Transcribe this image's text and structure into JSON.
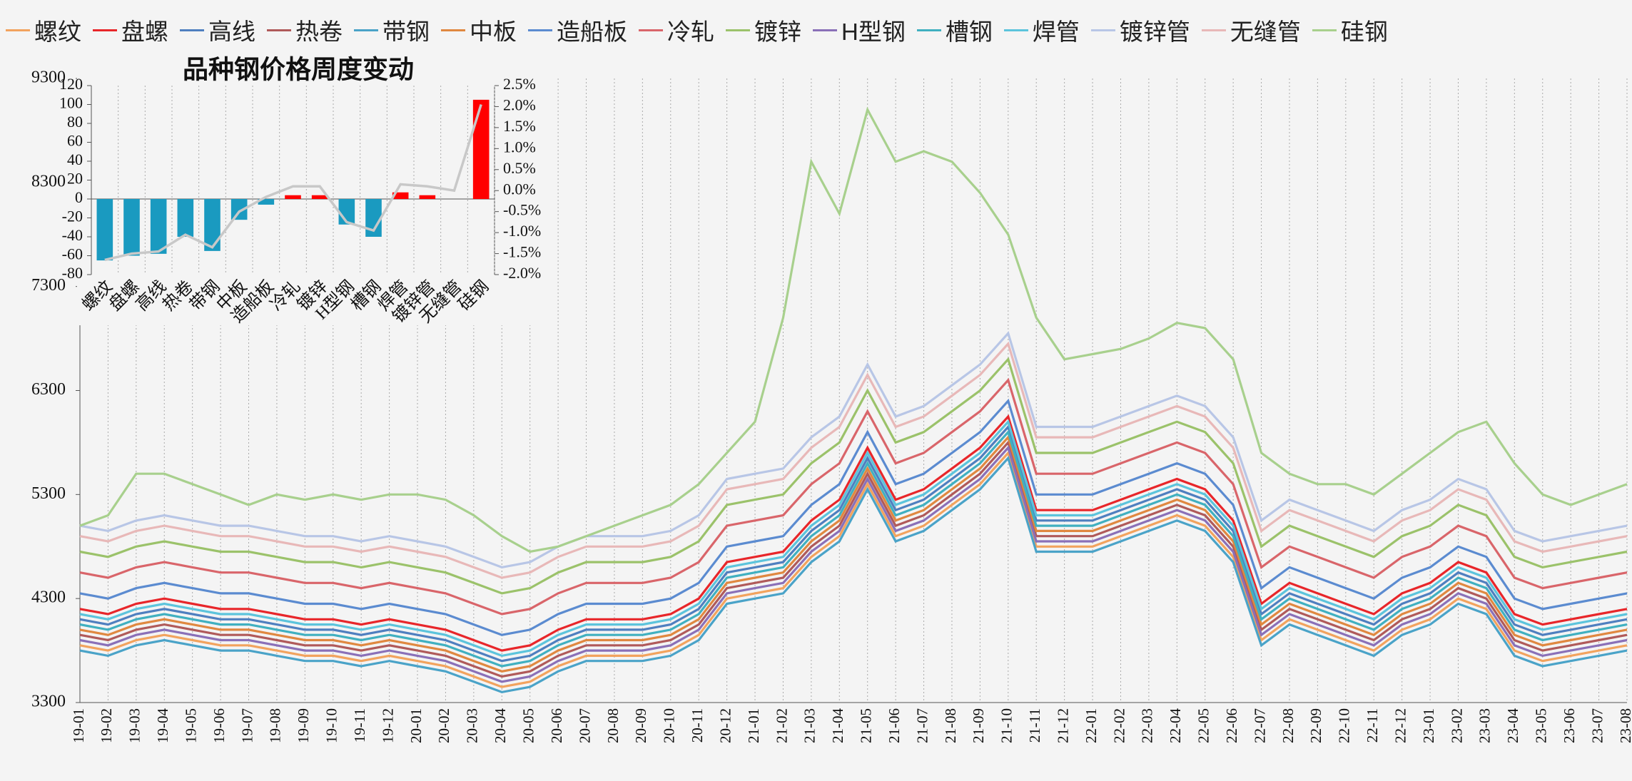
{
  "chart_data": [
    {
      "type": "line",
      "grid": true,
      "categories": [
        "19-01",
        "19-02",
        "19-03",
        "19-04",
        "19-05",
        "19-06",
        "19-07",
        "19-08",
        "19-09",
        "19-10",
        "19-11",
        "19-12",
        "20-01",
        "20-02",
        "20-03",
        "20-04",
        "20-05",
        "20-06",
        "20-07",
        "20-08",
        "20-09",
        "20-10",
        "20-11",
        "20-12",
        "21-01",
        "21-02",
        "21-03",
        "21-04",
        "21-05",
        "21-06",
        "21-07",
        "21-08",
        "21-09",
        "21-10",
        "21-11",
        "21-12",
        "22-01",
        "22-02",
        "22-03",
        "22-04",
        "22-05",
        "22-06",
        "22-07",
        "22-08",
        "22-09",
        "22-10",
        "22-11",
        "22-12",
        "23-01",
        "23-02",
        "23-03",
        "23-04",
        "23-05",
        "23-06",
        "23-07",
        "23-08"
      ],
      "ylim": [
        3300,
        9300
      ],
      "yticks": [
        3300,
        4300,
        5300,
        6300,
        7300,
        8300,
        9300
      ],
      "series": [
        {
          "name": "螺纹",
          "color": "#f2a35e",
          "values": [
            3850,
            3800,
            3900,
            3950,
            3900,
            3850,
            3850,
            3800,
            3750,
            3750,
            3700,
            3750,
            3700,
            3650,
            3550,
            3450,
            3500,
            3650,
            3750,
            3750,
            3750,
            3800,
            3950,
            4300,
            4350,
            4400,
            4700,
            4900,
            5400,
            4900,
            5000,
            5200,
            5400,
            5700,
            4800,
            4800,
            4800,
            4900,
            5000,
            5100,
            5000,
            4700,
            3900,
            4100,
            4000,
            3900,
            3800,
            4000,
            4100,
            4300,
            4200,
            3800,
            3700,
            3750,
            3800,
            3850
          ]
        },
        {
          "name": "盘螺",
          "color": "#e8262a",
          "values": [
            4200,
            4150,
            4250,
            4300,
            4250,
            4200,
            4200,
            4150,
            4100,
            4100,
            4050,
            4100,
            4050,
            4000,
            3900,
            3800,
            3850,
            4000,
            4100,
            4100,
            4100,
            4150,
            4300,
            4650,
            4700,
            4750,
            5050,
            5250,
            5750,
            5250,
            5350,
            5550,
            5750,
            6050,
            5150,
            5150,
            5150,
            5250,
            5350,
            5450,
            5350,
            5050,
            4250,
            4450,
            4350,
            4250,
            4150,
            4350,
            4450,
            4650,
            4550,
            4150,
            4050,
            4100,
            4150,
            4200
          ]
        },
        {
          "name": "高线",
          "color": "#4f7fbf",
          "values": [
            4100,
            4050,
            4150,
            4200,
            4150,
            4100,
            4100,
            4050,
            4000,
            4000,
            3950,
            4000,
            3950,
            3900,
            3800,
            3700,
            3750,
            3900,
            4000,
            4000,
            4000,
            4050,
            4200,
            4550,
            4600,
            4650,
            4950,
            5150,
            5650,
            5150,
            5250,
            5450,
            5650,
            5950,
            5050,
            5050,
            5050,
            5150,
            5250,
            5350,
            5250,
            4950,
            4150,
            4350,
            4250,
            4150,
            4050,
            4250,
            4350,
            4550,
            4450,
            4050,
            3950,
            4000,
            4050,
            4100
          ]
        },
        {
          "name": "热卷",
          "color": "#b05a5a",
          "values": [
            3950,
            3900,
            4000,
            4050,
            4000,
            3950,
            3950,
            3900,
            3850,
            3850,
            3800,
            3850,
            3800,
            3750,
            3650,
            3550,
            3600,
            3750,
            3850,
            3850,
            3850,
            3900,
            4050,
            4400,
            4450,
            4500,
            4800,
            5000,
            5500,
            5000,
            5100,
            5300,
            5500,
            5800,
            4900,
            4900,
            4900,
            5000,
            5100,
            5200,
            5100,
            4800,
            4000,
            4200,
            4100,
            4000,
            3900,
            4100,
            4200,
            4400,
            4300,
            3900,
            3800,
            3850,
            3900,
            3950
          ]
        },
        {
          "name": "带钢",
          "color": "#4aa3c8",
          "values": [
            3800,
            3750,
            3850,
            3900,
            3850,
            3800,
            3800,
            3750,
            3700,
            3700,
            3650,
            3700,
            3650,
            3600,
            3500,
            3400,
            3450,
            3600,
            3700,
            3700,
            3700,
            3750,
            3900,
            4250,
            4300,
            4350,
            4650,
            4850,
            5350,
            4850,
            4950,
            5150,
            5350,
            5650,
            4750,
            4750,
            4750,
            4850,
            4950,
            5050,
            4950,
            4650,
            3850,
            4050,
            3950,
            3850,
            3750,
            3950,
            4050,
            4250,
            4150,
            3750,
            3650,
            3700,
            3750,
            3800
          ]
        },
        {
          "name": "中板",
          "color": "#e08840",
          "values": [
            4000,
            3950,
            4050,
            4100,
            4050,
            4000,
            4000,
            3950,
            3900,
            3900,
            3850,
            3900,
            3850,
            3800,
            3700,
            3600,
            3650,
            3800,
            3900,
            3900,
            3900,
            3950,
            4100,
            4450,
            4500,
            4550,
            4850,
            5050,
            5550,
            5050,
            5150,
            5350,
            5550,
            5850,
            4950,
            4950,
            4950,
            5050,
            5150,
            5250,
            5150,
            4850,
            4050,
            4250,
            4150,
            4050,
            3950,
            4150,
            4250,
            4450,
            4350,
            3950,
            3850,
            3900,
            3950,
            4000
          ]
        },
        {
          "name": "造船板",
          "color": "#5b8bd0",
          "values": [
            4350,
            4300,
            4400,
            4450,
            4400,
            4350,
            4350,
            4300,
            4250,
            4250,
            4200,
            4250,
            4200,
            4150,
            4050,
            3950,
            4000,
            4150,
            4250,
            4250,
            4250,
            4300,
            4450,
            4800,
            4850,
            4900,
            5200,
            5400,
            5900,
            5400,
            5500,
            5700,
            5900,
            6200,
            5300,
            5300,
            5300,
            5400,
            5500,
            5600,
            5500,
            5200,
            4400,
            4600,
            4500,
            4400,
            4300,
            4500,
            4600,
            4800,
            4700,
            4300,
            4200,
            4250,
            4300,
            4350
          ]
        },
        {
          "name": "冷轧",
          "color": "#d9656a",
          "values": [
            4550,
            4500,
            4600,
            4650,
            4600,
            4550,
            4550,
            4500,
            4450,
            4450,
            4400,
            4450,
            4400,
            4350,
            4250,
            4150,
            4200,
            4350,
            4450,
            4450,
            4450,
            4500,
            4650,
            5000,
            5050,
            5100,
            5400,
            5600,
            6100,
            5600,
            5700,
            5900,
            6100,
            6400,
            5500,
            5500,
            5500,
            5600,
            5700,
            5800,
            5700,
            5400,
            4600,
            4800,
            4700,
            4600,
            4500,
            4700,
            4800,
            5000,
            4900,
            4500,
            4400,
            4450,
            4500,
            4550
          ]
        },
        {
          "name": "镀锌",
          "color": "#9bc26a",
          "values": [
            4750,
            4700,
            4800,
            4850,
            4800,
            4750,
            4750,
            4700,
            4650,
            4650,
            4600,
            4650,
            4600,
            4550,
            4450,
            4350,
            4400,
            4550,
            4650,
            4650,
            4650,
            4700,
            4850,
            5200,
            5250,
            5300,
            5600,
            5800,
            6300,
            5800,
            5900,
            6100,
            6300,
            6600,
            5700,
            5700,
            5700,
            5800,
            5900,
            6000,
            5900,
            5600,
            4800,
            5000,
            4900,
            4800,
            4700,
            4900,
            5000,
            5200,
            5100,
            4700,
            4600,
            4650,
            4700,
            4750
          ]
        },
        {
          "name": "H型钢",
          "color": "#8a70b8",
          "values": [
            3900,
            3850,
            3950,
            4000,
            3950,
            3900,
            3900,
            3850,
            3800,
            3800,
            3750,
            3800,
            3750,
            3700,
            3600,
            3500,
            3550,
            3700,
            3800,
            3800,
            3800,
            3850,
            4000,
            4350,
            4400,
            4450,
            4750,
            4950,
            5450,
            4950,
            5050,
            5250,
            5450,
            5750,
            4850,
            4850,
            4850,
            4950,
            5050,
            5150,
            5050,
            4750,
            3950,
            4150,
            4050,
            3950,
            3850,
            4050,
            4150,
            4350,
            4250,
            3850,
            3750,
            3800,
            3850,
            3900
          ]
        },
        {
          "name": "槽钢",
          "color": "#40b0c0",
          "values": [
            4050,
            4000,
            4100,
            4150,
            4100,
            4050,
            4050,
            4000,
            3950,
            3950,
            3900,
            3950,
            3900,
            3850,
            3750,
            3650,
            3700,
            3850,
            3950,
            3950,
            3950,
            4000,
            4150,
            4500,
            4550,
            4600,
            4900,
            5100,
            5600,
            5100,
            5200,
            5400,
            5600,
            5900,
            5000,
            5000,
            5000,
            5100,
            5200,
            5300,
            5200,
            4900,
            4100,
            4300,
            4200,
            4100,
            4000,
            4200,
            4300,
            4500,
            4400,
            4000,
            3900,
            3950,
            4000,
            4050
          ]
        },
        {
          "name": "焊管",
          "color": "#5cc4dc",
          "values": [
            4150,
            4100,
            4200,
            4250,
            4200,
            4150,
            4150,
            4100,
            4050,
            4050,
            4000,
            4050,
            4000,
            3950,
            3850,
            3750,
            3800,
            3950,
            4050,
            4050,
            4050,
            4100,
            4250,
            4600,
            4650,
            4700,
            5000,
            5200,
            5700,
            5200,
            5300,
            5500,
            5700,
            6000,
            5100,
            5100,
            5100,
            5200,
            5300,
            5400,
            5300,
            5000,
            4200,
            4400,
            4300,
            4200,
            4100,
            4300,
            4400,
            4600,
            4500,
            4100,
            4000,
            4050,
            4100,
            4150
          ]
        },
        {
          "name": "镀锌管",
          "color": "#b8c6e6",
          "values": [
            5000,
            4950,
            5050,
            5100,
            5050,
            5000,
            5000,
            4950,
            4900,
            4900,
            4850,
            4900,
            4850,
            4800,
            4700,
            4600,
            4650,
            4800,
            4900,
            4900,
            4900,
            4950,
            5100,
            5450,
            5500,
            5550,
            5850,
            6050,
            6550,
            6050,
            6150,
            6350,
            6550,
            6850,
            5950,
            5950,
            5950,
            6050,
            6150,
            6250,
            6150,
            5850,
            5050,
            5250,
            5150,
            5050,
            4950,
            5150,
            5250,
            5450,
            5350,
            4950,
            4850,
            4900,
            4950,
            5000
          ]
        },
        {
          "name": "无缝管",
          "color": "#e8b8b8",
          "values": [
            4900,
            4850,
            4950,
            5000,
            4950,
            4900,
            4900,
            4850,
            4800,
            4800,
            4750,
            4800,
            4750,
            4700,
            4600,
            4500,
            4550,
            4700,
            4800,
            4800,
            4800,
            4850,
            5000,
            5350,
            5400,
            5450,
            5750,
            5950,
            6450,
            5950,
            6050,
            6250,
            6450,
            6750,
            5850,
            5850,
            5850,
            5950,
            6050,
            6150,
            6050,
            5750,
            4950,
            5150,
            5050,
            4950,
            4850,
            5050,
            5150,
            5350,
            5250,
            4850,
            4750,
            4800,
            4850,
            4900
          ]
        },
        {
          "name": "硅钢",
          "color": "#a8d08d",
          "values": [
            5000,
            5100,
            5500,
            5500,
            5400,
            5300,
            5200,
            5300,
            5250,
            5300,
            5250,
            5300,
            5300,
            5250,
            5100,
            4900,
            4750,
            4800,
            4900,
            5000,
            5100,
            5200,
            5400,
            5700,
            6000,
            7000,
            8500,
            8000,
            9000,
            8500,
            8600,
            8500,
            8200,
            7800,
            7000,
            6600,
            6650,
            6700,
            6800,
            6950,
            6900,
            6600,
            5700,
            5500,
            5400,
            5400,
            5300,
            5500,
            5700,
            5900,
            6000,
            5600,
            5300,
            5200,
            5300,
            5400
          ]
        }
      ]
    },
    {
      "type": "bar",
      "title": "品种钢价格周度变动",
      "categories": [
        "螺纹",
        "盘螺",
        "高线",
        "热卷",
        "带钢",
        "中板",
        "造船板",
        "冷轧",
        "镀锌",
        "H型钢",
        "槽钢",
        "焊管",
        "镀锌管",
        "无缝管",
        "硅钢"
      ],
      "values": [
        -65,
        -60,
        -58,
        -40,
        -55,
        -22,
        -6,
        4,
        4,
        -27,
        -40,
        7,
        4,
        0,
        105
      ],
      "positive_color": "#ff0000",
      "negative_color": "#1a9ac0",
      "ylim": [
        -80,
        120
      ],
      "yticks": [
        -80,
        -60,
        -40,
        -20,
        0,
        20,
        40,
        60,
        80,
        100,
        120
      ],
      "y2lim": [
        -2.0,
        2.5
      ],
      "y2ticks": [
        {
          "value": -2.0,
          "label": "-2.0%"
        },
        {
          "value": -1.5,
          "label": "-1.5%"
        },
        {
          "value": -1.0,
          "label": "-1.0%"
        },
        {
          "value": -0.5,
          "label": "-0.5%"
        },
        {
          "value": 0.0,
          "label": "0.0%"
        },
        {
          "value": 0.5,
          "label": "0.5%"
        },
        {
          "value": 1.0,
          "label": "1.0%"
        },
        {
          "value": 1.5,
          "label": "1.5%"
        },
        {
          "value": 2.0,
          "label": "2.0%"
        },
        {
          "value": 2.5,
          "label": "2.5%"
        }
      ],
      "line": {
        "axis": "y2",
        "color": "#c8c8c8",
        "values": [
          -1.65,
          -1.5,
          -1.45,
          -1.05,
          -1.35,
          -0.5,
          -0.15,
          0.1,
          0.1,
          -0.75,
          -0.95,
          0.15,
          0.1,
          0.0,
          2.05
        ]
      }
    }
  ]
}
